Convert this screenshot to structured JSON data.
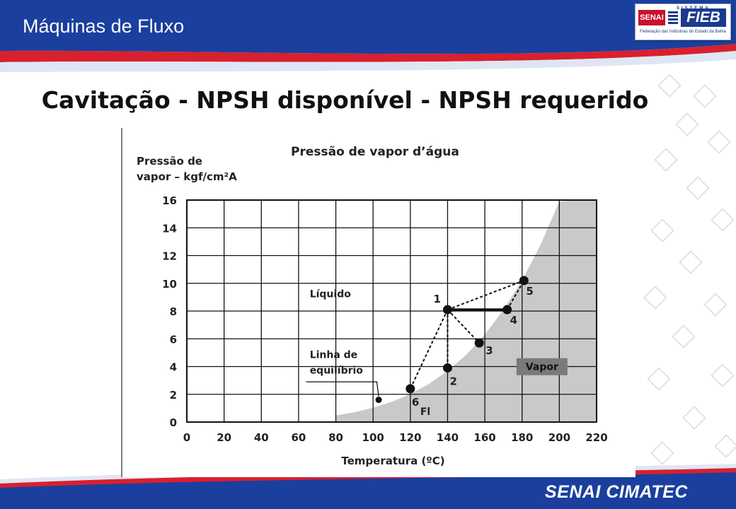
{
  "header": {
    "title": "Máquinas de Fluxo"
  },
  "logo": {
    "senai": "SENAI",
    "sistema": "SISTEMA",
    "fieb": "FIEB",
    "subtitle": "Federação das Indústrias do Estado da Bahia"
  },
  "slide": {
    "title": "Cavitação - NPSH disponível - NPSH requerido"
  },
  "footer": {
    "brand": "SENAI CIMATEC"
  },
  "colors": {
    "header_blue": "#1a3f9e",
    "accent_red": "#d8202e",
    "vapor_region": "#c9c9c9",
    "vapor_label_bg": "#7a7a7a"
  },
  "chart_data": {
    "type": "line",
    "title": "Pressão de vapor d’água",
    "ylabel_line1": "Pressão de",
    "ylabel_line2": "vapor – kgf/cm²A",
    "xlabel": "Temperatura (ºC)",
    "xlim": [
      0,
      220
    ],
    "ylim": [
      0,
      16
    ],
    "xticks": [
      0,
      20,
      40,
      60,
      80,
      100,
      120,
      140,
      160,
      180,
      200,
      220
    ],
    "yticks": [
      0,
      2,
      4,
      6,
      8,
      10,
      12,
      14,
      16
    ],
    "grid": true,
    "saturation_curve": {
      "x": [
        80,
        90,
        100,
        110,
        120,
        130,
        140,
        150,
        160,
        170,
        180,
        190,
        200,
        210
      ],
      "y": [
        0.48,
        0.71,
        1.03,
        1.46,
        2.02,
        2.75,
        3.69,
        4.85,
        6.3,
        8.1,
        10.2,
        12.8,
        15.9,
        16
      ]
    },
    "region_labels": {
      "liquid": "Líquido",
      "vapor": "Vapor",
      "equilibrium_line1": "Linha de",
      "equilibrium_line2": "equilíbrio"
    },
    "equilibrium_marker": {
      "x": 103,
      "y": 1.6
    },
    "points": [
      {
        "label": "1",
        "x": 140,
        "y": 8.1
      },
      {
        "label": "2",
        "x": 140,
        "y": 3.9
      },
      {
        "label": "3",
        "x": 157,
        "y": 5.7
      },
      {
        "label": "4",
        "x": 172,
        "y": 8.1
      },
      {
        "label": "5",
        "x": 181,
        "y": 10.2
      },
      {
        "label": "6",
        "x": 120,
        "y": 2.4
      }
    ],
    "point6_sublabel": "Fl",
    "dashed_segments": [
      [
        "1",
        "2"
      ],
      [
        "1",
        "3"
      ],
      [
        "1",
        "5"
      ],
      [
        "1",
        "6"
      ],
      [
        "4",
        "5"
      ]
    ],
    "solid_segments": [
      [
        "1",
        "4"
      ]
    ]
  }
}
